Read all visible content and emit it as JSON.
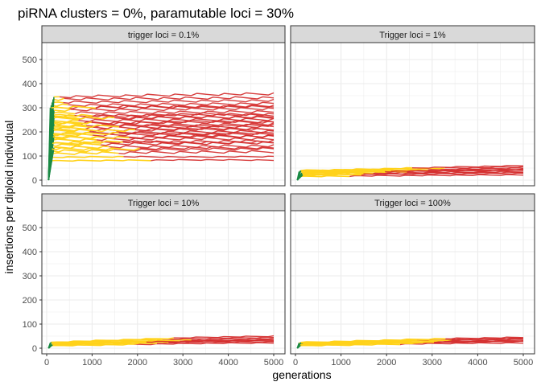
{
  "chart_data": {
    "type": "line",
    "title": "piRNA clusters = 0%, paramutable loci = 30%",
    "xlabel": "generations",
    "ylabel": "insertions per diploid individual",
    "xlim": [
      0,
      5000
    ],
    "ylim": [
      0,
      500
    ],
    "x_ticks": [
      "0",
      "1000",
      "2000",
      "3000",
      "4000",
      "5000"
    ],
    "y_ticks": [
      "0",
      "100",
      "200",
      "300",
      "400",
      "500"
    ],
    "grid": true,
    "legend": "none",
    "colors": {
      "phase1": "#1b8a45",
      "phase2": "#ffd21a",
      "phase3": "#d42a2a"
    },
    "panels": [
      {
        "label": "trigger loci = 0.1%",
        "series": [
          {
            "ys": [
              80,
              82,
              84,
              83
            ],
            "yellow_end": 2300
          },
          {
            "ys": [
              95,
              97,
              96,
              98
            ],
            "yellow_end": 1700
          },
          {
            "ys": [
              110,
              114,
              116,
              118
            ],
            "yellow_end": 1600
          },
          {
            "ys": [
              120,
              125,
              128,
              130
            ],
            "yellow_end": 1500
          },
          {
            "ys": [
              135,
              138,
              140,
              142
            ],
            "yellow_end": 1400
          },
          {
            "ys": [
              145,
              150,
              152,
              155
            ],
            "yellow_end": 1300
          },
          {
            "ys": [
              155,
              158,
              160,
              163
            ],
            "yellow_end": 1250
          },
          {
            "ys": [
              165,
              170,
              172,
              170
            ],
            "yellow_end": 1200
          },
          {
            "ys": [
              175,
              178,
              180,
              182
            ],
            "yellow_end": 1150
          },
          {
            "ys": [
              185,
              188,
              190,
              192
            ],
            "yellow_end": 1100
          },
          {
            "ys": [
              195,
              197,
              200,
              202
            ],
            "yellow_end": 1050
          },
          {
            "ys": [
              205,
              208,
              210,
              212
            ],
            "yellow_end": 1000
          },
          {
            "ys": [
              215,
              218,
              220,
              222
            ],
            "yellow_end": 950
          },
          {
            "ys": [
              225,
              228,
              230,
              232
            ],
            "yellow_end": 900
          },
          {
            "ys": [
              235,
              238,
              240,
              242
            ],
            "yellow_end": 850
          },
          {
            "ys": [
              245,
              248,
              250,
              252
            ],
            "yellow_end": 800
          },
          {
            "ys": [
              255,
              258,
              260,
              262
            ],
            "yellow_end": 750
          },
          {
            "ys": [
              265,
              268,
              270,
              272
            ],
            "yellow_end": 700
          },
          {
            "ys": [
              278,
              280,
              282,
              285
            ],
            "yellow_end": 650
          },
          {
            "ys": [
              290,
              292,
              295,
              296
            ],
            "yellow_end": 600
          },
          {
            "ys": [
              300,
              303,
              305,
              308
            ],
            "yellow_end": 550
          },
          {
            "ys": [
              310,
              312,
              315,
              318
            ],
            "yellow_end": 500
          },
          {
            "ys": [
              322,
              325,
              328,
              330
            ],
            "yellow_end": 450
          },
          {
            "ys": [
              335,
              338,
              340,
              342
            ],
            "yellow_end": 400
          },
          {
            "ys": [
              345,
              350,
              355,
              358
            ],
            "yellow_end": 350
          },
          {
            "ys": [
              150,
              160,
              155,
              158
            ],
            "yellow_end": 1800
          },
          {
            "ys": [
              180,
              175,
              185,
              180
            ],
            "yellow_end": 1900
          },
          {
            "ys": [
              210,
              205,
              215,
              210
            ],
            "yellow_end": 2000
          },
          {
            "ys": [
              240,
              235,
              245,
              240
            ],
            "yellow_end": 1000
          },
          {
            "ys": [
              270,
              265,
              275,
              270
            ],
            "yellow_end": 1100
          },
          {
            "ys": [
              130,
              128,
              135,
              133
            ],
            "yellow_end": 2100
          },
          {
            "ys": [
              300,
              305,
              302,
              306
            ],
            "yellow_end": 1200
          },
          {
            "ys": [
              190,
              195,
              192,
              196
            ],
            "yellow_end": 1600
          },
          {
            "ys": [
              220,
              226,
              224,
              228
            ],
            "yellow_end": 1700
          },
          {
            "ys": [
              260,
              256,
              262,
              258
            ],
            "yellow_end": 1500
          }
        ]
      },
      {
        "label": "Trigger loci = 1%",
        "series": [
          {
            "ys": [
              15,
              18,
              20,
              22
            ],
            "yellow_end": 1200
          },
          {
            "ys": [
              20,
              24,
              26,
              28
            ],
            "yellow_end": 1500
          },
          {
            "ys": [
              25,
              30,
              33,
              35
            ],
            "yellow_end": 1800
          },
          {
            "ys": [
              28,
              34,
              38,
              40
            ],
            "yellow_end": 2500
          },
          {
            "ys": [
              32,
              38,
              42,
              45
            ],
            "yellow_end": 2200
          },
          {
            "ys": [
              35,
              40,
              45,
              50
            ],
            "yellow_end": 3000
          },
          {
            "ys": [
              38,
              44,
              50,
              55
            ],
            "yellow_end": 3300
          },
          {
            "ys": [
              40,
              46,
              54,
              60
            ],
            "yellow_end": 2600
          },
          {
            "ys": [
              30,
              35,
              40,
              42
            ],
            "yellow_end": 2000
          },
          {
            "ys": [
              22,
              26,
              30,
              32
            ],
            "yellow_end": 1600
          }
        ]
      },
      {
        "label": "Trigger loci = 10%",
        "series": [
          {
            "ys": [
              10,
              15,
              20,
              22
            ],
            "yellow_end": 2000
          },
          {
            "ys": [
              12,
              18,
              24,
              26
            ],
            "yellow_end": 2500
          },
          {
            "ys": [
              15,
              22,
              28,
              30
            ],
            "yellow_end": 2800
          },
          {
            "ys": [
              18,
              25,
              32,
              35
            ],
            "yellow_end": 3000
          },
          {
            "ys": [
              20,
              28,
              36,
              40
            ],
            "yellow_end": 3300
          },
          {
            "ys": [
              22,
              32,
              40,
              45
            ],
            "yellow_end": 2600
          },
          {
            "ys": [
              25,
              35,
              45,
              50
            ],
            "yellow_end": 2900
          },
          {
            "ys": [
              16,
              24,
              30,
              33
            ],
            "yellow_end": 2300
          }
        ]
      },
      {
        "label": "Trigger loci = 100%",
        "series": [
          {
            "ys": [
              10,
              15,
              20,
              22
            ],
            "yellow_end": 2400
          },
          {
            "ys": [
              12,
              18,
              24,
              28
            ],
            "yellow_end": 2800
          },
          {
            "ys": [
              15,
              22,
              28,
              32
            ],
            "yellow_end": 3000
          },
          {
            "ys": [
              18,
              25,
              32,
              36
            ],
            "yellow_end": 3200
          },
          {
            "ys": [
              20,
              28,
              34,
              40
            ],
            "yellow_end": 3500
          },
          {
            "ys": [
              22,
              30,
              38,
              42
            ],
            "yellow_end": 2700
          },
          {
            "ys": [
              14,
              20,
              26,
              30
            ],
            "yellow_end": 3100
          },
          {
            "ys": [
              24,
              32,
              40,
              45
            ],
            "yellow_end": 3400
          }
        ]
      }
    ]
  }
}
